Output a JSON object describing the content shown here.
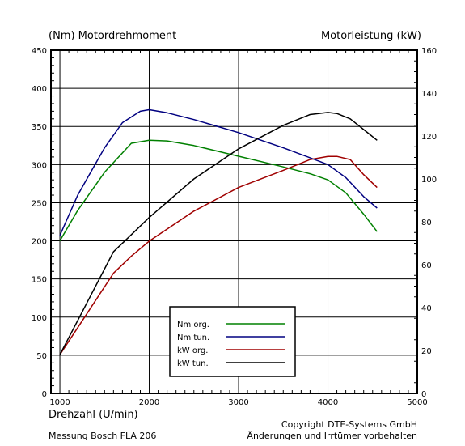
{
  "chart_data": {
    "type": "line",
    "left_axis_title": "(Nm)  Motordrehmoment",
    "right_axis_title": "Motorleistung  (kW)",
    "xlabel": "Drehzahl  (U/min)",
    "footer_left": "Messung Bosch FLA 206",
    "footer_right_1": "Copyright  DTE-Systems GmbH",
    "footer_right_2": "Änderungen und Irrtümer vorbehalten",
    "xlim": [
      900,
      5000
    ],
    "ylim_left": [
      0,
      450
    ],
    "ylim_right": [
      0,
      160
    ],
    "x_ticks": [
      1000,
      2000,
      3000,
      4000,
      5000
    ],
    "y_left_ticks": [
      0,
      50,
      100,
      150,
      200,
      250,
      300,
      350,
      400,
      450
    ],
    "y_right_ticks": [
      0,
      20,
      40,
      60,
      80,
      100,
      120,
      140,
      160
    ],
    "grid": true,
    "legend_position": "bottom-center",
    "series": [
      {
        "name": "Nm org.",
        "axis": "left",
        "color": "#008000",
        "x": [
          1000,
          1200,
          1500,
          1800,
          2000,
          2200,
          2500,
          3000,
          3500,
          3800,
          4000,
          4200,
          4400,
          4550
        ],
        "y": [
          200,
          240,
          290,
          328,
          332,
          331,
          325,
          311,
          297,
          288,
          280,
          263,
          235,
          212
        ]
      },
      {
        "name": "Nm tun.",
        "axis": "left",
        "color": "#000080",
        "x": [
          1000,
          1200,
          1500,
          1700,
          1900,
          2000,
          2200,
          2500,
          3000,
          3500,
          3800,
          4000,
          4200,
          4400,
          4550
        ],
        "y": [
          207,
          260,
          322,
          355,
          370,
          372,
          368,
          359,
          342,
          322,
          309,
          300,
          283,
          258,
          243
        ]
      },
      {
        "name": "kW org.",
        "axis": "right",
        "color": "#a00000",
        "x": [
          1000,
          1300,
          1600,
          1800,
          2000,
          2500,
          3000,
          3500,
          3800,
          4000,
          4100,
          4250,
          4400,
          4550
        ],
        "y": [
          18,
          37,
          56,
          64,
          71,
          85,
          96,
          104,
          109,
          110.5,
          110.5,
          109,
          102,
          96
        ]
      },
      {
        "name": "kW tun.",
        "axis": "right",
        "color": "#000000",
        "x": [
          1000,
          1300,
          1600,
          1800,
          2000,
          2500,
          3000,
          3500,
          3800,
          4000,
          4100,
          4250,
          4400,
          4550
        ],
        "y": [
          18,
          42,
          66,
          74,
          82,
          100,
          114,
          125,
          130,
          131,
          130.5,
          128,
          123,
          118
        ]
      }
    ]
  }
}
